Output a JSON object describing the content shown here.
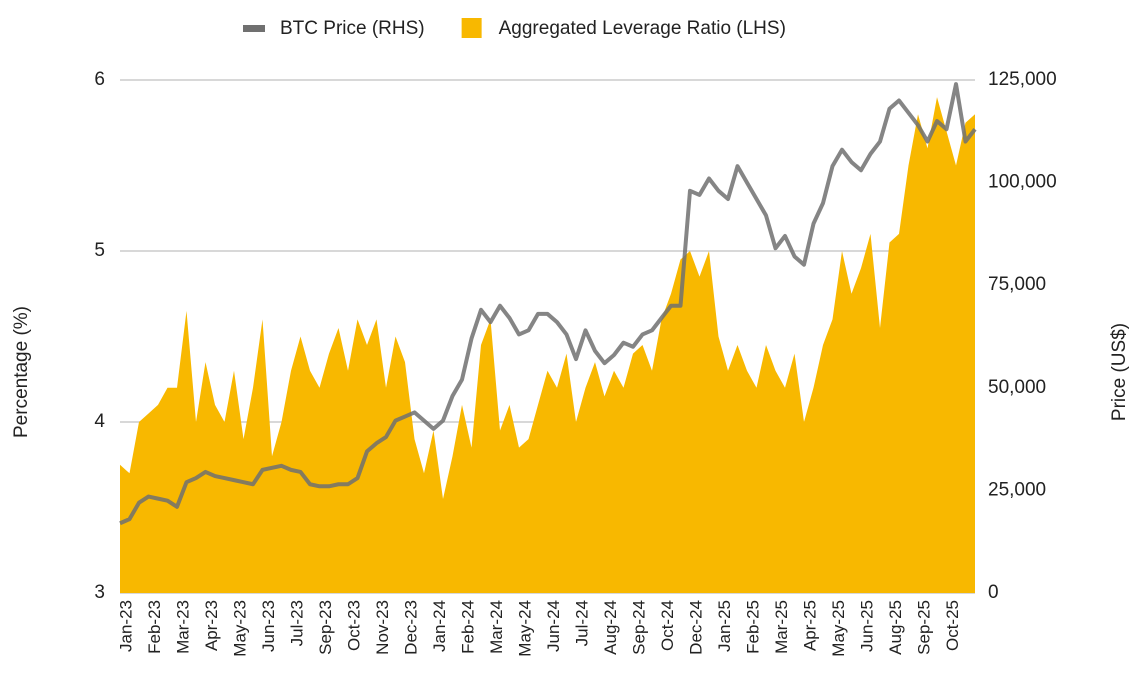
{
  "chart_data": {
    "type": "combo",
    "legend": "top",
    "grid": true,
    "y_label": "Percentage (%)",
    "y2_label": "Price (US$)",
    "categories": [
      "Jan-23",
      null,
      null,
      "Feb-23",
      null,
      null,
      "Mar-23",
      null,
      null,
      "Apr-23",
      null,
      null,
      "May-23",
      null,
      null,
      "Jun-23",
      null,
      null,
      "Jul-23",
      null,
      null,
      "Sep-23",
      null,
      null,
      "Oct-23",
      null,
      null,
      "Nov-23",
      null,
      null,
      "Dec-23",
      null,
      null,
      "Jan-24",
      null,
      null,
      "Feb-24",
      null,
      null,
      "Mar-24",
      null,
      null,
      "May-24",
      null,
      null,
      "Jun-24",
      null,
      null,
      "Jul-24",
      null,
      null,
      "Aug-24",
      null,
      null,
      "Sep-24",
      null,
      null,
      "Oct-24",
      null,
      null,
      "Dec-24",
      null,
      null,
      "Jan-25",
      null,
      null,
      "Feb-25",
      null,
      null,
      "Mar-25",
      null,
      null,
      "Apr-25",
      null,
      null,
      "May-25",
      null,
      null,
      "Jun-25",
      null,
      null,
      "Aug-25",
      null,
      null,
      "Sep-25",
      null,
      null,
      "Oct-25",
      null,
      null,
      null
    ],
    "series": [
      {
        "name": "BTC Price (RHS)",
        "type": "line",
        "axis": "y2",
        "color": "#707070",
        "values": [
          17000,
          18000,
          22000,
          23500,
          23000,
          22500,
          21000,
          27000,
          28000,
          29500,
          28500,
          28000,
          27500,
          27000,
          26500,
          30000,
          30500,
          31000,
          30000,
          29500,
          26500,
          26000,
          26000,
          26500,
          26500,
          28000,
          34500,
          36500,
          38000,
          42000,
          43000,
          44000,
          42000,
          40000,
          42000,
          48000,
          52000,
          62000,
          69000,
          66000,
          70000,
          67000,
          63000,
          64000,
          68000,
          68000,
          66000,
          63000,
          57000,
          64000,
          59000,
          56000,
          58000,
          61000,
          60000,
          63000,
          64000,
          67000,
          70000,
          70000,
          98000,
          97000,
          101000,
          98000,
          96000,
          104000,
          100000,
          96000,
          92000,
          84000,
          87000,
          82000,
          80000,
          90000,
          95000,
          104000,
          108000,
          105000,
          103000,
          107000,
          110000,
          118000,
          120000,
          117000,
          114000,
          110000,
          115000,
          113000,
          124000,
          110000,
          113000
        ]
      },
      {
        "name": "Aggregated Leverage Ratio (LHS)",
        "type": "area",
        "axis": "y",
        "color": "#f8b800",
        "values": [
          3.75,
          3.7,
          4.0,
          4.05,
          4.1,
          4.2,
          4.2,
          4.65,
          4.0,
          4.35,
          4.1,
          4.0,
          4.3,
          3.9,
          4.2,
          4.6,
          3.8,
          4.0,
          4.3,
          4.5,
          4.3,
          4.2,
          4.4,
          4.55,
          4.3,
          4.6,
          4.45,
          4.6,
          4.2,
          4.5,
          4.35,
          3.9,
          3.7,
          3.95,
          3.55,
          3.8,
          4.1,
          3.85,
          4.45,
          4.6,
          3.95,
          4.1,
          3.85,
          3.9,
          4.1,
          4.3,
          4.2,
          4.4,
          4.0,
          4.2,
          4.35,
          4.15,
          4.3,
          4.2,
          4.4,
          4.45,
          4.3,
          4.6,
          4.75,
          4.95,
          5.0,
          4.85,
          5.0,
          4.5,
          4.3,
          4.45,
          4.3,
          4.2,
          4.45,
          4.3,
          4.2,
          4.4,
          4.0,
          4.2,
          4.45,
          4.6,
          5.0,
          4.75,
          4.9,
          5.1,
          4.55,
          5.05,
          5.1,
          5.5,
          5.8,
          5.6,
          5.9,
          5.7,
          5.5,
          5.75,
          5.8
        ]
      }
    ],
    "ylim": [
      3,
      6
    ],
    "yticks": [
      3,
      4,
      5,
      6
    ],
    "y2lim": [
      0,
      125000
    ],
    "y2ticks": [
      0,
      {
        "value": 25000,
        "label": "25,000"
      },
      {
        "value": 50000,
        "label": "50,000"
      },
      {
        "value": 75000,
        "label": "75,000"
      },
      {
        "value": 100000,
        "label": "100,000"
      },
      {
        "value": 125000,
        "label": "125,000"
      }
    ]
  }
}
